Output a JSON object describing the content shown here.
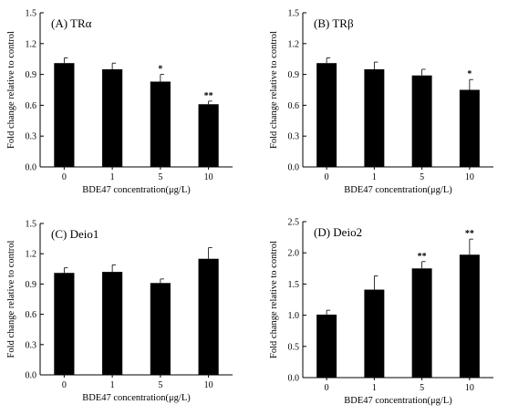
{
  "chart_data": [
    {
      "type": "bar",
      "title": "(A)  TRα",
      "xlabel": "BDE47 concentration(μg/L)",
      "ylabel": "Fold change relative to control",
      "categories": [
        "0",
        "1",
        "5",
        "10"
      ],
      "values": [
        1.01,
        0.95,
        0.83,
        0.61
      ],
      "errors": [
        0.05,
        0.06,
        0.07,
        0.03
      ],
      "significance": [
        "",
        "",
        "*",
        "**"
      ],
      "ylim": [
        0.0,
        1.5
      ],
      "yticks": [
        "0.0",
        "0.3",
        "0.6",
        "0.9",
        "1.2",
        "1.5"
      ],
      "grid": false,
      "bar_color": "#000000"
    },
    {
      "type": "bar",
      "title": "(B)  TRβ",
      "xlabel": "BDE47 concentration(μg/L)",
      "ylabel": "Fold change relative to control",
      "categories": [
        "0",
        "1",
        "5",
        "10"
      ],
      "values": [
        1.01,
        0.95,
        0.89,
        0.75
      ],
      "errors": [
        0.05,
        0.07,
        0.06,
        0.1
      ],
      "significance": [
        "",
        "",
        "",
        "*"
      ],
      "ylim": [
        0.0,
        1.5
      ],
      "yticks": [
        "0.0",
        "0.3",
        "0.6",
        "0.9",
        "1.2",
        "1.5"
      ],
      "grid": false,
      "bar_color": "#000000"
    },
    {
      "type": "bar",
      "title": "(C)  Deio1",
      "xlabel": "BDE47 concentration(μg/L)",
      "ylabel": "Fold change relative to control",
      "categories": [
        "0",
        "1",
        "5",
        "10"
      ],
      "values": [
        1.01,
        1.02,
        0.91,
        1.15
      ],
      "errors": [
        0.05,
        0.07,
        0.04,
        0.11
      ],
      "significance": [
        "",
        "",
        "",
        ""
      ],
      "ylim": [
        0.0,
        1.5
      ],
      "yticks": [
        "0.0",
        "0.3",
        "0.6",
        "0.9",
        "1.2",
        "1.5"
      ],
      "grid": false,
      "bar_color": "#000000"
    },
    {
      "type": "bar",
      "title": "(D)  Deio2",
      "xlabel": "BDE47 concentration(μg/L)",
      "ylabel": "Fold change relative to control",
      "categories": [
        "0",
        "1",
        "5",
        "10"
      ],
      "values": [
        1.01,
        1.41,
        1.75,
        1.97
      ],
      "errors": [
        0.07,
        0.22,
        0.11,
        0.25
      ],
      "significance": [
        "",
        "",
        "**",
        "**"
      ],
      "ylim": [
        0.0,
        2.5
      ],
      "yticks": [
        "0.0",
        "0.5",
        "1.0",
        "1.5",
        "2.0",
        "2.5"
      ],
      "grid": false,
      "bar_color": "#000000"
    }
  ]
}
